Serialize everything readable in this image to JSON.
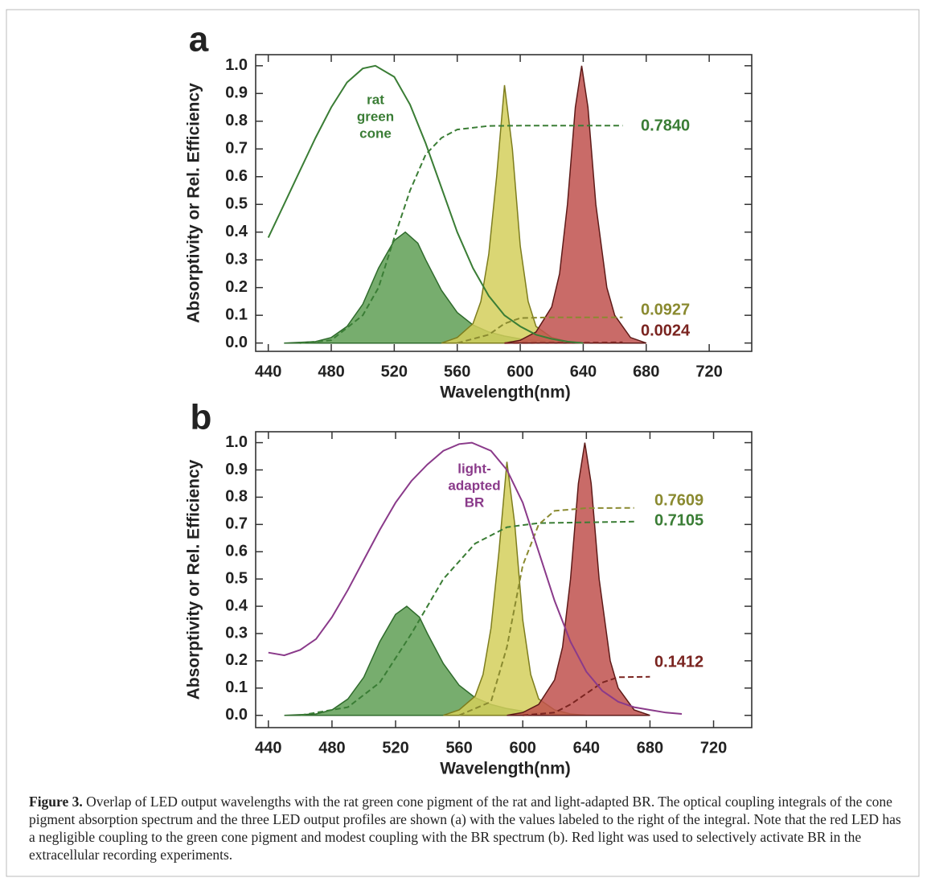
{
  "chart_data": [
    {
      "type": "line",
      "panel_label": "a",
      "x_label": "Wavelength(nm)",
      "y_label": "Absorptivity or Rel. Efficiency",
      "xlim": [
        432,
        747
      ],
      "ylim": [
        -0.03,
        1.04
      ],
      "xticks": [
        440,
        480,
        520,
        560,
        600,
        640,
        680,
        720
      ],
      "yticks": [
        {
          "value": 0,
          "label": "0.0"
        },
        0.1,
        0.2,
        0.3,
        0.4,
        0.5,
        0.6,
        0.7,
        0.8,
        0.9,
        {
          "value": 1,
          "label": "1.0"
        }
      ],
      "series": [
        {
          "style": "fill",
          "color": "#2f6b2c",
          "fill_color": "#5f9f55",
          "x": [
            450,
            470,
            480,
            490,
            500,
            510,
            520,
            527,
            535,
            540,
            550,
            560,
            570,
            580,
            590,
            600,
            620,
            640
          ],
          "values": [
            0,
            0.005,
            0.02,
            0.06,
            0.14,
            0.27,
            0.37,
            0.4,
            0.36,
            0.3,
            0.19,
            0.11,
            0.065,
            0.04,
            0.025,
            0.015,
            0.005,
            0
          ]
        },
        {
          "style": "fill",
          "color": "#7d7d1e",
          "fill_color": "#d3cf5c",
          "x": [
            550,
            560,
            570,
            575,
            580,
            585,
            590,
            595,
            600,
            605,
            610,
            620,
            630,
            640
          ],
          "values": [
            0,
            0.02,
            0.07,
            0.15,
            0.32,
            0.6,
            0.93,
            0.7,
            0.35,
            0.15,
            0.06,
            0.02,
            0.005,
            0
          ]
        },
        {
          "style": "fill",
          "color": "#5e1a18",
          "fill_color": "#c0514d",
          "x": [
            590,
            600,
            610,
            620,
            625,
            630,
            635,
            639,
            643,
            648,
            655,
            660,
            670,
            680
          ],
          "values": [
            0,
            0.01,
            0.04,
            0.13,
            0.25,
            0.5,
            0.85,
            1.0,
            0.85,
            0.5,
            0.2,
            0.1,
            0.02,
            0
          ]
        },
        {
          "style": "dash",
          "color": "#3a7d35",
          "x": [
            460,
            480,
            500,
            510,
            520,
            530,
            540,
            550,
            560,
            580,
            600,
            665
          ],
          "values": [
            0,
            0.01,
            0.1,
            0.2,
            0.38,
            0.55,
            0.68,
            0.74,
            0.77,
            0.783,
            0.784,
            0.784
          ]
        },
        {
          "style": "dash",
          "color": "#8a8a30",
          "x": [
            560,
            580,
            590,
            600,
            620,
            665
          ],
          "values": [
            0,
            0.03,
            0.07,
            0.09,
            0.0927,
            0.0927
          ]
        },
        {
          "style": "dash",
          "color": "#7a2420",
          "x": [
            590,
            640,
            665
          ],
          "values": [
            0,
            0.001,
            0.0024
          ]
        },
        {
          "style": "line",
          "color": "#3a7d35",
          "x": [
            440,
            450,
            460,
            470,
            480,
            490,
            500,
            508,
            520,
            530,
            540,
            550,
            560,
            570,
            580,
            590,
            600,
            610,
            620,
            630,
            640
          ],
          "values": [
            0.38,
            0.5,
            0.62,
            0.74,
            0.85,
            0.94,
            0.99,
            1.0,
            0.96,
            0.86,
            0.72,
            0.56,
            0.4,
            0.27,
            0.17,
            0.1,
            0.06,
            0.03,
            0.015,
            0.005,
            0
          ]
        }
      ],
      "annotations": [
        {
          "lines": [
            "rat",
            "green",
            "cone"
          ],
          "color": "#3a7d35"
        },
        {
          "lines": [
            "0.7840"
          ],
          "color": "#3a7d35"
        },
        {
          "lines": [
            "0.0927"
          ],
          "color": "#8a8a30"
        },
        {
          "lines": [
            "0.0024"
          ],
          "color": "#7a2420"
        }
      ]
    },
    {
      "type": "line",
      "panel_label": "b",
      "x_label": "Wavelength(nm)",
      "y_label": "Absorptivity or Rel. Efficiency",
      "xlim": [
        432,
        744
      ],
      "ylim": [
        -0.045,
        1.04
      ],
      "xticks": [
        440,
        480,
        520,
        560,
        600,
        640,
        680,
        720
      ],
      "yticks": [
        {
          "value": 0,
          "label": "0.0"
        },
        0.1,
        0.2,
        0.3,
        0.4,
        0.5,
        0.6,
        0.7,
        0.8,
        0.9,
        {
          "value": 1,
          "label": "1.0"
        }
      ],
      "series": [
        {
          "style": "fill",
          "color": "#2f6b2c",
          "fill_color": "#5f9f55",
          "x": [
            450,
            470,
            480,
            490,
            500,
            510,
            520,
            527,
            535,
            540,
            550,
            560,
            570,
            580,
            590,
            600,
            620,
            640
          ],
          "values": [
            0,
            0.005,
            0.02,
            0.06,
            0.14,
            0.27,
            0.37,
            0.4,
            0.36,
            0.3,
            0.19,
            0.11,
            0.065,
            0.04,
            0.025,
            0.015,
            0.005,
            0
          ]
        },
        {
          "style": "fill",
          "color": "#7d7d1e",
          "fill_color": "#d3cf5c",
          "x": [
            550,
            560,
            570,
            575,
            580,
            585,
            590,
            595,
            600,
            605,
            610,
            620,
            630,
            640
          ],
          "values": [
            0,
            0.02,
            0.07,
            0.15,
            0.32,
            0.6,
            0.93,
            0.7,
            0.35,
            0.15,
            0.06,
            0.02,
            0.005,
            0
          ]
        },
        {
          "style": "fill",
          "color": "#5e1a18",
          "fill_color": "#c0514d",
          "x": [
            590,
            600,
            610,
            620,
            625,
            630,
            635,
            639,
            643,
            648,
            655,
            660,
            670,
            680
          ],
          "values": [
            0,
            0.01,
            0.04,
            0.13,
            0.25,
            0.5,
            0.85,
            1.0,
            0.85,
            0.5,
            0.2,
            0.1,
            0.02,
            0
          ]
        },
        {
          "style": "dash",
          "color": "#3a7d35",
          "x": [
            460,
            490,
            510,
            530,
            550,
            570,
            590,
            610,
            670
          ],
          "values": [
            0,
            0.03,
            0.12,
            0.3,
            0.5,
            0.63,
            0.69,
            0.705,
            0.7105
          ]
        },
        {
          "style": "dash",
          "color": "#8a8a30",
          "x": [
            560,
            580,
            590,
            600,
            610,
            620,
            640,
            670
          ],
          "values": [
            0,
            0.05,
            0.25,
            0.55,
            0.7,
            0.75,
            0.76,
            0.7609
          ]
        },
        {
          "style": "dash",
          "color": "#7a2420",
          "x": [
            600,
            620,
            630,
            640,
            650,
            660,
            680
          ],
          "values": [
            0,
            0.01,
            0.04,
            0.08,
            0.12,
            0.14,
            0.1412
          ]
        },
        {
          "style": "line",
          "color": "#8a3a8a",
          "x": [
            440,
            450,
            460,
            470,
            480,
            490,
            500,
            510,
            520,
            530,
            540,
            550,
            560,
            568,
            580,
            590,
            600,
            610,
            620,
            630,
            640,
            650,
            660,
            670,
            680,
            690,
            700
          ],
          "values": [
            0.23,
            0.22,
            0.24,
            0.28,
            0.36,
            0.46,
            0.57,
            0.68,
            0.78,
            0.86,
            0.92,
            0.97,
            0.995,
            1.0,
            0.97,
            0.9,
            0.78,
            0.6,
            0.42,
            0.27,
            0.16,
            0.09,
            0.05,
            0.03,
            0.02,
            0.01,
            0.005
          ]
        }
      ],
      "annotations": [
        {
          "lines": [
            "light-",
            "adapted",
            "BR"
          ],
          "color": "#8a3a8a"
        },
        {
          "lines": [
            "0.7609"
          ],
          "color": "#8a8a30"
        },
        {
          "lines": [
            "0.7105"
          ],
          "color": "#3a7d35"
        },
        {
          "lines": [
            "0.1412"
          ],
          "color": "#7a2420"
        }
      ]
    }
  ],
  "caption": {
    "label": "Figure 3.",
    "text": "Overlap of LED output wavelengths with the rat green cone pigment of the rat and light-adapted BR. The optical coupling integrals of the cone pigment absorption spectrum and the three LED output profiles are shown (a) with the values labeled to the right of the integral. Note that the red LED has a negligible coupling to the green cone pigment and modest coupling with the BR spectrum (b). Red light was used to selectively activate BR in the extracellular recording experiments."
  }
}
